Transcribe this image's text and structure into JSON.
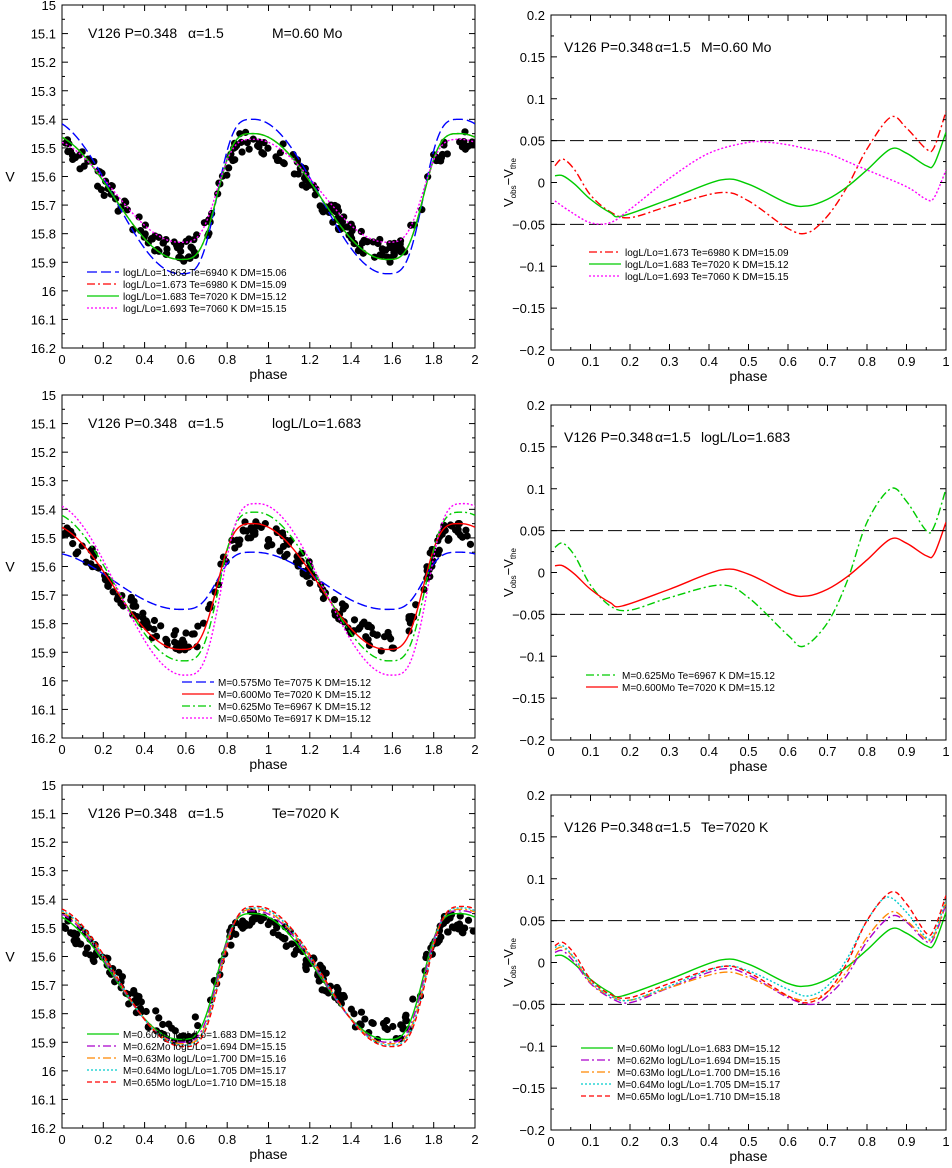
{
  "chart_data": [
    {
      "type": "scatter",
      "title": "V126 P=0.348",
      "alpha_label": "α=1.5",
      "subtitle": "M=0.60 Mo",
      "xlabel": "phase",
      "ylabel": "V",
      "xlim": [
        0,
        2
      ],
      "ylim": [
        16.2,
        15.0
      ],
      "y_inverted": true,
      "xticks": [
        "0",
        "0.2",
        "0.4",
        "0.6",
        "0.8",
        "1",
        "1.2",
        "1.4",
        "1.6",
        "1.8",
        "2"
      ],
      "yticks": [
        "15",
        "15.1",
        "15.2",
        "15.3",
        "15.4",
        "15.5",
        "15.6",
        "15.7",
        "15.8",
        "15.9",
        "16",
        "16.1",
        "16.2"
      ],
      "observed": {
        "mean": 15.67,
        "amp": 0.19,
        "count": 220
      },
      "legend_position": "bottom-left",
      "series": [
        {
          "name": "logL/Lo=1.663 Te=6940 K DM=15.06",
          "color": "#0000ff",
          "dash": "long",
          "mean": 15.67,
          "amp": 0.27,
          "shift": 0.0
        },
        {
          "name": "logL/Lo=1.673 Te=6980 K DM=15.09",
          "color": "#ff0000",
          "dash": "dashdot",
          "mean": 15.67,
          "amp": 0.22,
          "shift": 0.0
        },
        {
          "name": "logL/Lo=1.683 Te=7020 K DM=15.12",
          "color": "#00cc00",
          "dash": "solid",
          "mean": 15.67,
          "amp": 0.22,
          "shift": 0.0
        },
        {
          "name": "logL/Lo=1.693 Te=7060 K DM=15.15",
          "color": "#ff00ff",
          "dash": "dotted",
          "mean": 15.65,
          "amp": 0.18,
          "shift": 0.0
        }
      ]
    },
    {
      "type": "line",
      "title": "V126 P=0.348",
      "alpha_label": "α=1.5",
      "subtitle": "M=0.60 Mo",
      "xlabel": "phase",
      "ylabel_main": "V",
      "ylabel_sub1": "obs",
      "ylabel_sub2": "the",
      "xlim": [
        0,
        1
      ],
      "ylim": [
        -0.2,
        0.2
      ],
      "xticks": [
        "0",
        "0.1",
        "0.2",
        "0.3",
        "0.4",
        "0.5",
        "0.6",
        "0.7",
        "0.8",
        "0.9",
        "1"
      ],
      "yticks": [
        "0.2",
        "0.15",
        "0.1",
        "0.05",
        "0",
        "−0.05",
        "−0.1",
        "−0.15",
        "−0.2"
      ],
      "hlines": [
        0.05,
        -0.05
      ],
      "legend_position": "middle-center",
      "series": [
        {
          "name": "logL/Lo=1.673 Te=6980 K DM=15.09",
          "color": "#ff0000",
          "dash": "dashdot",
          "x": [
            0.01,
            0.03,
            0.06,
            0.1,
            0.15,
            0.2,
            0.3,
            0.43,
            0.5,
            0.6,
            0.65,
            0.7,
            0.75,
            0.8,
            0.86,
            0.9,
            0.95,
            0.97,
            1.0
          ],
          "y": [
            0.02,
            0.028,
            0.015,
            -0.015,
            -0.035,
            -0.042,
            -0.028,
            -0.012,
            -0.022,
            -0.055,
            -0.06,
            -0.04,
            -0.005,
            0.04,
            0.078,
            0.065,
            0.04,
            0.042,
            0.085
          ]
        },
        {
          "name": "logL/Lo=1.683 Te=7020 K DM=15.12",
          "color": "#00cc00",
          "dash": "solid",
          "x": [
            0.01,
            0.03,
            0.06,
            0.1,
            0.15,
            0.18,
            0.3,
            0.43,
            0.5,
            0.6,
            0.65,
            0.7,
            0.75,
            0.8,
            0.86,
            0.9,
            0.95,
            0.97,
            1.0
          ],
          "y": [
            0.008,
            0.008,
            -0.002,
            -0.02,
            -0.036,
            -0.04,
            -0.02,
            0.003,
            -0.002,
            -0.025,
            -0.028,
            -0.02,
            -0.005,
            0.015,
            0.04,
            0.035,
            0.02,
            0.022,
            0.06
          ]
        },
        {
          "name": "logL/Lo=1.693 Te=7060 K DM=15.15",
          "color": "#ff00ff",
          "dash": "dotted",
          "x": [
            0.01,
            0.05,
            0.1,
            0.15,
            0.2,
            0.3,
            0.4,
            0.5,
            0.55,
            0.6,
            0.65,
            0.7,
            0.75,
            0.8,
            0.9,
            0.95,
            0.97,
            1.0
          ],
          "y": [
            -0.022,
            -0.035,
            -0.048,
            -0.048,
            -0.032,
            0.005,
            0.035,
            0.048,
            0.048,
            0.045,
            0.04,
            0.035,
            0.025,
            0.015,
            -0.005,
            -0.02,
            -0.018,
            0.015
          ]
        }
      ]
    },
    {
      "type": "scatter",
      "title": "V126 P=0.348",
      "alpha_label": "α=1.5",
      "subtitle": "logL/Lo=1.683",
      "xlabel": "phase",
      "ylabel": "V",
      "xlim": [
        0,
        2
      ],
      "ylim": [
        16.2,
        15.0
      ],
      "y_inverted": true,
      "xticks": [
        "0",
        "0.2",
        "0.4",
        "0.6",
        "0.8",
        "1",
        "1.2",
        "1.4",
        "1.6",
        "1.8",
        "2"
      ],
      "yticks": [
        "15",
        "15.1",
        "15.2",
        "15.3",
        "15.4",
        "15.5",
        "15.6",
        "15.7",
        "15.8",
        "15.9",
        "16",
        "16.1",
        "16.2"
      ],
      "observed": {
        "mean": 15.67,
        "amp": 0.19,
        "count": 220
      },
      "legend_position": "bottom-center",
      "series": [
        {
          "name": "M=0.575Mo Te=7075 K DM=15.12",
          "color": "#0000ff",
          "dash": "long",
          "mean": 15.65,
          "amp": 0.1,
          "shift": 0.0
        },
        {
          "name": "M=0.600Mo Te=7020 K DM=15.12",
          "color": "#ff0000",
          "dash": "solid",
          "mean": 15.67,
          "amp": 0.22,
          "shift": 0.0
        },
        {
          "name": "M=0.625Mo Te=6967 K DM=15.12",
          "color": "#00cc00",
          "dash": "dashdot",
          "mean": 15.67,
          "amp": 0.26,
          "shift": 0.01
        },
        {
          "name": "M=0.650Mo Te=6917 K DM=15.12",
          "color": "#ff00ff",
          "dash": "dotted",
          "mean": 15.68,
          "amp": 0.3,
          "shift": 0.02
        }
      ]
    },
    {
      "type": "line",
      "title": "V126 P=0.348",
      "alpha_label": "α=1.5",
      "subtitle": "logL/Lo=1.683",
      "xlabel": "phase",
      "ylabel_main": "V",
      "ylabel_sub1": "obs",
      "ylabel_sub2": "the",
      "xlim": [
        0,
        1
      ],
      "ylim": [
        -0.2,
        0.2
      ],
      "xticks": [
        "0",
        "0.1",
        "0.2",
        "0.3",
        "0.4",
        "0.5",
        "0.6",
        "0.7",
        "0.8",
        "0.9",
        "1"
      ],
      "yticks": [
        "0.2",
        "0.15",
        "0.1",
        "0.05",
        "0",
        "−0.05",
        "−0.1",
        "−0.15",
        "−0.2"
      ],
      "hlines": [
        0.05,
        -0.05
      ],
      "legend_position": "bottom-center",
      "series": [
        {
          "name": "M=0.625Mo Te=6967 K DM=15.12",
          "color": "#00cc00",
          "dash": "dashdot",
          "x": [
            0.01,
            0.03,
            0.06,
            0.1,
            0.15,
            0.2,
            0.3,
            0.43,
            0.5,
            0.6,
            0.64,
            0.7,
            0.75,
            0.8,
            0.86,
            0.9,
            0.95,
            0.97,
            1.0
          ],
          "y": [
            0.03,
            0.035,
            0.02,
            -0.015,
            -0.04,
            -0.045,
            -0.03,
            -0.015,
            -0.03,
            -0.075,
            -0.088,
            -0.06,
            -0.01,
            0.06,
            0.1,
            0.085,
            0.05,
            0.055,
            0.1
          ]
        },
        {
          "name": "M=0.600Mo Te=7020 K DM=15.12",
          "color": "#ff0000",
          "dash": "solid",
          "x": [
            0.01,
            0.03,
            0.06,
            0.1,
            0.15,
            0.18,
            0.3,
            0.43,
            0.5,
            0.6,
            0.65,
            0.7,
            0.75,
            0.8,
            0.86,
            0.9,
            0.95,
            0.97,
            1.0
          ],
          "y": [
            0.008,
            0.008,
            -0.002,
            -0.02,
            -0.036,
            -0.04,
            -0.02,
            0.003,
            -0.002,
            -0.025,
            -0.028,
            -0.02,
            -0.005,
            0.015,
            0.04,
            0.035,
            0.02,
            0.022,
            0.06
          ]
        }
      ]
    },
    {
      "type": "scatter",
      "title": "V126 P=0.348",
      "alpha_label": "α=1.5",
      "subtitle": "Te=7020 K",
      "xlabel": "phase",
      "ylabel": "V",
      "xlim": [
        0,
        2
      ],
      "ylim": [
        16.2,
        15.0
      ],
      "y_inverted": true,
      "xticks": [
        "0",
        "0.2",
        "0.4",
        "0.6",
        "0.8",
        "1",
        "1.2",
        "1.4",
        "1.6",
        "1.8",
        "2"
      ],
      "yticks": [
        "15",
        "15.1",
        "15.2",
        "15.3",
        "15.4",
        "15.5",
        "15.6",
        "15.7",
        "15.8",
        "15.9",
        "16",
        "16.1",
        "16.2"
      ],
      "observed": {
        "mean": 15.67,
        "amp": 0.19,
        "count": 220
      },
      "legend_position": "bottom-left",
      "series": [
        {
          "name": "M=0.60Mo logL/Lo=1.683 DM=15.12",
          "color": "#00cc00",
          "dash": "solid",
          "mean": 15.67,
          "amp": 0.22,
          "shift": 0.0
        },
        {
          "name": "M=0.62Mo logL/Lo=1.694 DM=15.15",
          "color": "#aa00cc",
          "dash": "dashdot",
          "mean": 15.67,
          "amp": 0.23,
          "shift": 0.005
        },
        {
          "name": "M=0.63Mo logL/Lo=1.700 DM=15.16",
          "color": "#ff8800",
          "dash": "dashdot",
          "mean": 15.67,
          "amp": 0.235,
          "shift": 0.01
        },
        {
          "name": "M=0.64Mo logL/Lo=1.705 DM=15.17",
          "color": "#00cccc",
          "dash": "dotted",
          "mean": 15.67,
          "amp": 0.24,
          "shift": 0.012
        },
        {
          "name": "M=0.65Mo logL/Lo=1.710 DM=15.18",
          "color": "#ff0000",
          "dash": "short",
          "mean": 15.67,
          "amp": 0.245,
          "shift": 0.015
        }
      ]
    },
    {
      "type": "line",
      "title": "V126 P=0.348",
      "alpha_label": "α=1.5",
      "subtitle": "Te=7020 K",
      "xlabel": "phase",
      "ylabel_main": "V",
      "ylabel_sub1": "obs",
      "ylabel_sub2": "the",
      "xlim": [
        0,
        1
      ],
      "ylim": [
        -0.2,
        0.2
      ],
      "xticks": [
        "0",
        "0.1",
        "0.2",
        "0.3",
        "0.4",
        "0.5",
        "0.6",
        "0.7",
        "0.8",
        "0.9",
        "1"
      ],
      "yticks": [
        "0.2",
        "0.15",
        "0.1",
        "0.05",
        "0",
        "−0.05",
        "−0.1",
        "−0.15",
        "−0.2"
      ],
      "hlines": [
        0.05,
        -0.05
      ],
      "legend_position": "bottom-center",
      "series": [
        {
          "name": "M=0.60Mo logL/Lo=1.683 DM=15.12",
          "color": "#00cc00",
          "dash": "solid",
          "x": [
            0.01,
            0.03,
            0.06,
            0.1,
            0.15,
            0.18,
            0.3,
            0.43,
            0.5,
            0.6,
            0.65,
            0.7,
            0.75,
            0.8,
            0.86,
            0.9,
            0.95,
            0.97,
            1.0
          ],
          "y": [
            0.008,
            0.008,
            -0.002,
            -0.02,
            -0.036,
            -0.04,
            -0.02,
            0.003,
            -0.002,
            -0.025,
            -0.028,
            -0.02,
            -0.005,
            0.015,
            0.04,
            0.035,
            0.02,
            0.022,
            0.06
          ]
        },
        {
          "name": "M=0.62Mo logL/Lo=1.694 DM=15.15",
          "color": "#aa00cc",
          "dash": "dashdot",
          "x": [
            0.01,
            0.03,
            0.06,
            0.1,
            0.15,
            0.2,
            0.3,
            0.43,
            0.5,
            0.6,
            0.66,
            0.7,
            0.75,
            0.8,
            0.86,
            0.9,
            0.95,
            0.97,
            1.0
          ],
          "y": [
            0.012,
            0.014,
            0.0,
            -0.025,
            -0.042,
            -0.048,
            -0.03,
            -0.008,
            -0.015,
            -0.042,
            -0.05,
            -0.04,
            -0.015,
            0.025,
            0.055,
            0.048,
            0.025,
            0.03,
            0.07
          ]
        },
        {
          "name": "M=0.63Mo logL/Lo=1.700 DM=15.16",
          "color": "#ff8800",
          "dash": "dashdot",
          "x": [
            0.01,
            0.03,
            0.06,
            0.1,
            0.15,
            0.2,
            0.3,
            0.43,
            0.5,
            0.6,
            0.65,
            0.7,
            0.75,
            0.8,
            0.86,
            0.9,
            0.95,
            0.97,
            1.0
          ],
          "y": [
            0.015,
            0.018,
            0.004,
            -0.024,
            -0.04,
            -0.045,
            -0.03,
            -0.012,
            -0.018,
            -0.04,
            -0.045,
            -0.035,
            -0.01,
            0.03,
            0.06,
            0.05,
            0.028,
            0.032,
            0.072
          ]
        },
        {
          "name": "M=0.64Mo logL/Lo=1.705 DM=15.17",
          "color": "#00cccc",
          "dash": "dotted",
          "x": [
            0.01,
            0.03,
            0.06,
            0.1,
            0.15,
            0.2,
            0.3,
            0.43,
            0.5,
            0.6,
            0.65,
            0.7,
            0.75,
            0.8,
            0.85,
            0.9,
            0.95,
            0.97,
            1.0
          ],
          "y": [
            0.018,
            0.02,
            0.005,
            -0.022,
            -0.04,
            -0.045,
            -0.028,
            -0.005,
            -0.01,
            -0.032,
            -0.04,
            -0.028,
            0.005,
            0.05,
            0.078,
            0.06,
            0.03,
            0.035,
            0.075
          ]
        },
        {
          "name": "M=0.65Mo logL/Lo=1.710 DM=15.18",
          "color": "#ff0000",
          "dash": "short",
          "x": [
            0.01,
            0.03,
            0.06,
            0.1,
            0.15,
            0.2,
            0.3,
            0.43,
            0.5,
            0.6,
            0.65,
            0.7,
            0.75,
            0.8,
            0.86,
            0.9,
            0.95,
            0.97,
            1.0
          ],
          "y": [
            0.02,
            0.024,
            0.01,
            -0.02,
            -0.038,
            -0.042,
            -0.025,
            -0.005,
            -0.012,
            -0.04,
            -0.048,
            -0.035,
            0.0,
            0.05,
            0.084,
            0.07,
            0.035,
            0.04,
            0.08
          ]
        }
      ]
    }
  ]
}
